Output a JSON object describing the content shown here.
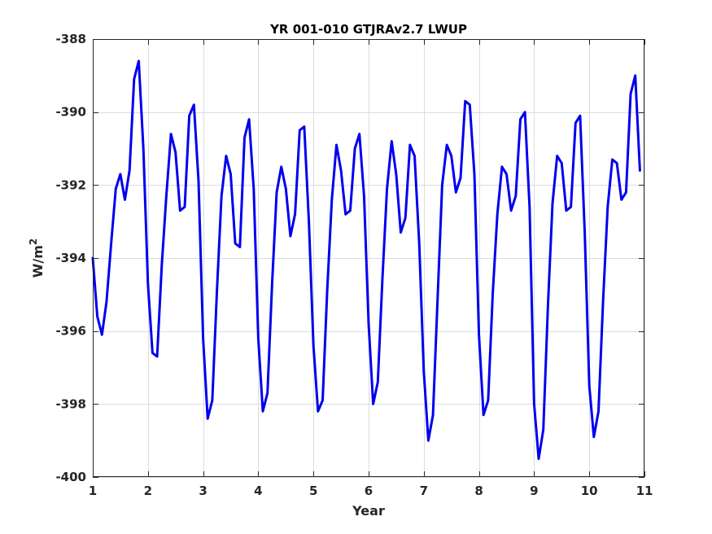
{
  "chart_data": {
    "type": "line",
    "title": "YR 001-010 GTJRAv2.7 LWUP",
    "xlabel": "Year",
    "ylabel_base": "W/m",
    "ylabel_sup": "2",
    "xlim": [
      1,
      11
    ],
    "ylim": [
      -400,
      -388
    ],
    "xticks": [
      "1",
      "2",
      "3",
      "4",
      "5",
      "6",
      "7",
      "8",
      "9",
      "10",
      "11"
    ],
    "yticks": [
      "-388",
      "-390",
      "-392",
      "-394",
      "-396",
      "-398",
      "-400"
    ],
    "grid": true,
    "series": [
      {
        "color": "#0000ee",
        "x": [
          1.0,
          1.083,
          1.167,
          1.25,
          1.333,
          1.417,
          1.5,
          1.583,
          1.667,
          1.75,
          1.833,
          1.917,
          2.0,
          2.083,
          2.167,
          2.25,
          2.333,
          2.417,
          2.5,
          2.583,
          2.667,
          2.75,
          2.833,
          2.917,
          3.0,
          3.083,
          3.167,
          3.25,
          3.333,
          3.417,
          3.5,
          3.583,
          3.667,
          3.75,
          3.833,
          3.917,
          4.0,
          4.083,
          4.167,
          4.25,
          4.333,
          4.417,
          4.5,
          4.583,
          4.667,
          4.75,
          4.833,
          4.917,
          5.0,
          5.083,
          5.167,
          5.25,
          5.333,
          5.417,
          5.5,
          5.583,
          5.667,
          5.75,
          5.833,
          5.917,
          6.0,
          6.083,
          6.167,
          6.25,
          6.333,
          6.417,
          6.5,
          6.583,
          6.667,
          6.75,
          6.833,
          6.917,
          7.0,
          7.083,
          7.167,
          7.25,
          7.333,
          7.417,
          7.5,
          7.583,
          7.667,
          7.75,
          7.833,
          7.917,
          8.0,
          8.083,
          8.167,
          8.25,
          8.333,
          8.417,
          8.5,
          8.583,
          8.667,
          8.75,
          8.833,
          8.917,
          9.0,
          9.083,
          9.167,
          9.25,
          9.333,
          9.417,
          9.5,
          9.583,
          9.667,
          9.75,
          9.833,
          9.917,
          10.0,
          10.083,
          10.167,
          10.25,
          10.333,
          10.417,
          10.5,
          10.583,
          10.667,
          10.75,
          10.833,
          10.917
        ],
        "y": [
          -394.0,
          -395.6,
          -396.1,
          -395.2,
          -393.6,
          -392.1,
          -391.7,
          -392.4,
          -391.6,
          -389.1,
          -388.6,
          -391.0,
          -394.7,
          -396.6,
          -396.7,
          -394.2,
          -392.3,
          -390.6,
          -391.1,
          -392.7,
          -392.6,
          -390.1,
          -389.8,
          -391.9,
          -396.2,
          -398.4,
          -397.9,
          -394.9,
          -392.3,
          -391.2,
          -391.7,
          -393.6,
          -393.7,
          -390.7,
          -390.2,
          -392.1,
          -396.2,
          -398.2,
          -397.7,
          -394.7,
          -392.2,
          -391.5,
          -392.1,
          -393.4,
          -392.8,
          -390.5,
          -390.4,
          -393.0,
          -396.4,
          -398.2,
          -397.9,
          -394.9,
          -392.4,
          -390.9,
          -391.6,
          -392.8,
          -392.7,
          -391.0,
          -390.6,
          -392.3,
          -395.8,
          -398.0,
          -397.4,
          -394.6,
          -392.1,
          -390.8,
          -391.7,
          -393.3,
          -392.9,
          -390.9,
          -391.2,
          -393.6,
          -397.1,
          -399.0,
          -398.3,
          -395.1,
          -392.0,
          -390.9,
          -391.2,
          -392.2,
          -391.8,
          -389.7,
          -389.8,
          -391.7,
          -396.1,
          -398.3,
          -397.9,
          -395.0,
          -392.8,
          -391.5,
          -391.7,
          -392.7,
          -392.3,
          -390.2,
          -390.0,
          -392.6,
          -398.0,
          -399.5,
          -398.7,
          -395.3,
          -392.5,
          -391.2,
          -391.4,
          -392.7,
          -392.6,
          -390.3,
          -390.1,
          -393.3,
          -397.5,
          -398.9,
          -398.2,
          -395.2,
          -392.6,
          -391.3,
          -391.4,
          -392.4,
          -392.2,
          -389.5,
          -389.0,
          -391.6
        ]
      }
    ]
  }
}
